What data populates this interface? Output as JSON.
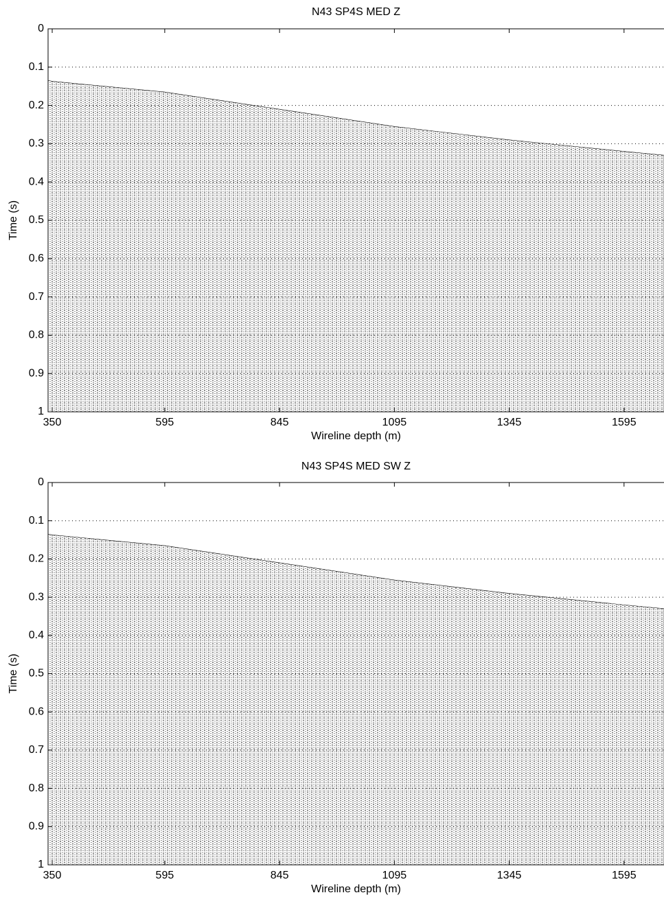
{
  "chart_data": [
    {
      "type": "area",
      "title": "N43 SP4S MED Z",
      "xlabel": "Wireline depth (m)",
      "ylabel": "Time (s)",
      "x": [
        341,
        350,
        595,
        845,
        1095,
        1345,
        1595,
        1682
      ],
      "values": [
        0.135,
        0.137,
        0.165,
        0.21,
        0.255,
        0.29,
        0.32,
        0.33
      ],
      "xlim": [
        341,
        1682
      ],
      "ylim": [
        0,
        1
      ],
      "yreverse": true,
      "xticks": [
        350,
        595,
        845,
        1095,
        1345,
        1595
      ],
      "yticks": [
        0,
        0.1,
        0.2,
        0.3,
        0.4,
        0.5,
        0.6,
        0.7,
        0.8,
        0.9,
        1
      ],
      "grid": true,
      "color": "#000000"
    },
    {
      "type": "area",
      "title": "N43 SP4S MED SW Z",
      "xlabel": "Wireline depth (m)",
      "ylabel": "Time (s)",
      "x": [
        341,
        350,
        595,
        845,
        1095,
        1345,
        1595,
        1682
      ],
      "values": [
        0.135,
        0.137,
        0.165,
        0.21,
        0.255,
        0.29,
        0.32,
        0.33
      ],
      "xlim": [
        341,
        1682
      ],
      "ylim": [
        0,
        1
      ],
      "yreverse": true,
      "xticks": [
        350,
        595,
        845,
        1095,
        1345,
        1595
      ],
      "yticks": [
        0,
        0.1,
        0.2,
        0.3,
        0.4,
        0.5,
        0.6,
        0.7,
        0.8,
        0.9,
        1
      ],
      "grid": true,
      "color": "#000000"
    }
  ]
}
